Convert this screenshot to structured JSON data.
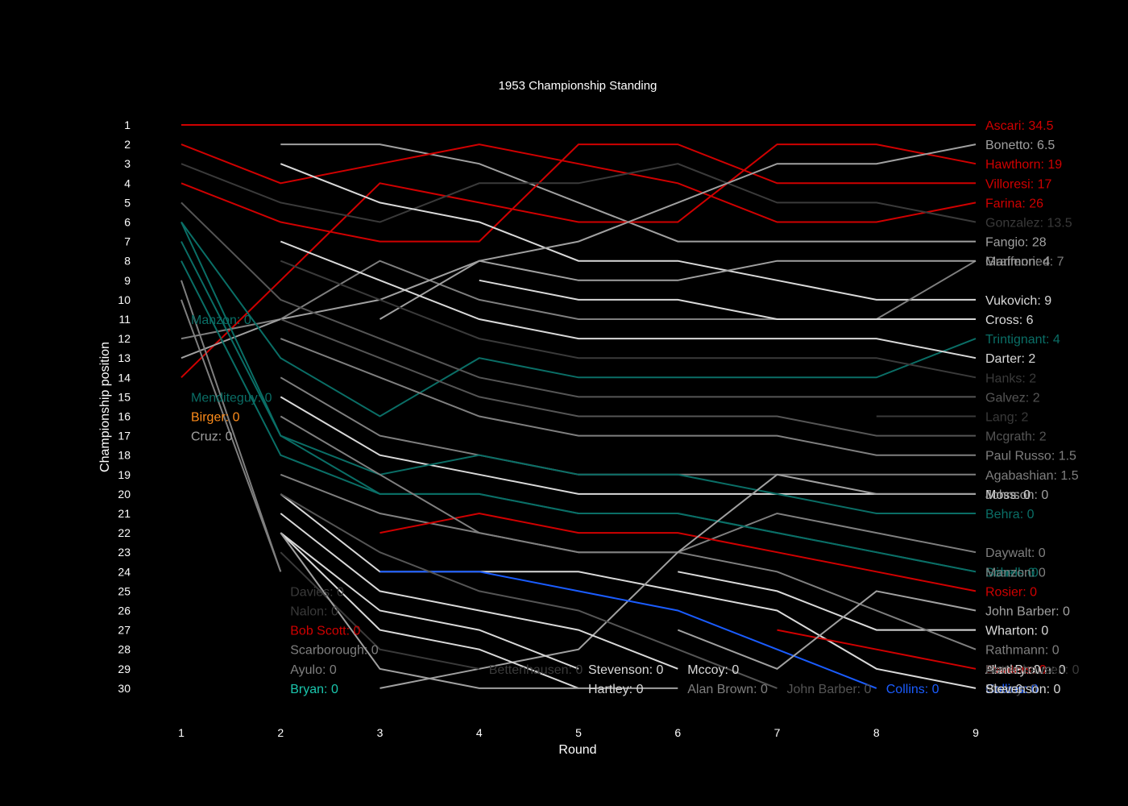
{
  "chart_data": {
    "type": "line",
    "title": "1953 Championship Standing",
    "xlabel": "Round",
    "ylabel": "Championship position",
    "x": [
      1,
      2,
      3,
      4,
      5,
      6,
      7,
      8,
      9
    ],
    "y_ticks": [
      1,
      2,
      3,
      4,
      5,
      6,
      7,
      8,
      9,
      10,
      11,
      12,
      13,
      14,
      15,
      16,
      17,
      18,
      19,
      20,
      21,
      22,
      23,
      24,
      25,
      26,
      27,
      28,
      29,
      30
    ],
    "yrange": [
      1,
      30
    ],
    "y_inverted": true,
    "grid": false,
    "background": "#000000",
    "colors": {
      "red": "#d00000",
      "light": "#d9d9d9",
      "gray": "#a0a0a0",
      "mid": "#7f7f7f",
      "dark": "#555555",
      "darker": "#3a3a3a",
      "teal": "#0a6e66",
      "bright_teal": "#1ac6ad",
      "orange": "#ff8c1a",
      "blue": "#1a5cff"
    },
    "series": [
      {
        "label": "Ascari: 34.5",
        "color": "red",
        "x": [
          1,
          2,
          3,
          4,
          5,
          6,
          7,
          8,
          9
        ],
        "y": [
          1,
          1,
          1,
          1,
          1,
          1,
          1,
          1,
          1
        ]
      },
      {
        "label": "Fangio: 28",
        "color": "gray",
        "x": [
          2,
          3,
          4,
          5,
          6,
          7,
          8,
          9
        ],
        "y": [
          2,
          2,
          3,
          5,
          7,
          7,
          7,
          7
        ]
      },
      {
        "label": "Farina: 26",
        "color": "red",
        "x": [
          1,
          2,
          3,
          4,
          5,
          6,
          7,
          8,
          9
        ],
        "y": [
          2,
          4,
          3,
          2,
          3,
          4,
          6,
          6,
          5
        ]
      },
      {
        "label": "Hawthorn: 19",
        "color": "red",
        "x": [
          1,
          2,
          3,
          4,
          5,
          6,
          7,
          8,
          9
        ],
        "y": [
          14,
          9,
          4,
          5,
          6,
          6,
          2,
          2,
          3
        ]
      },
      {
        "label": "Villoresi: 17",
        "color": "red",
        "x": [
          1,
          2,
          3,
          4,
          5,
          6,
          7,
          8,
          9
        ],
        "y": [
          4,
          6,
          7,
          7,
          2,
          2,
          4,
          4,
          4
        ]
      },
      {
        "label": "Gonzalez: 13.5",
        "color": "darker",
        "x": [
          1,
          2,
          3,
          4,
          5,
          6,
          7,
          8,
          9
        ],
        "y": [
          3,
          5,
          6,
          4,
          4,
          3,
          5,
          5,
          6
        ]
      },
      {
        "label": "Vukovich: 9",
        "color": "light",
        "x": [
          2,
          3,
          4,
          5,
          6,
          7,
          8,
          9
        ],
        "y": [
          3,
          5,
          6,
          8,
          8,
          9,
          10,
          10
        ]
      },
      {
        "label": "Graffenried: 7",
        "color": "mid",
        "x": [
          1,
          2,
          3,
          4,
          5,
          6,
          7,
          8,
          9
        ],
        "y": [
          12,
          11,
          8,
          10,
          11,
          11,
          11,
          11,
          8
        ]
      },
      {
        "label": "Bonetto: 6.5",
        "color": "gray",
        "x": [
          1,
          2,
          3,
          4,
          5,
          6,
          7,
          8,
          9
        ],
        "y": [
          13,
          11,
          10,
          8,
          7,
          5,
          3,
          3,
          2
        ]
      },
      {
        "label": "Cross: 6",
        "color": "light",
        "x": [
          4,
          5,
          6,
          7,
          8,
          9
        ],
        "y": [
          9,
          10,
          10,
          11,
          11,
          11
        ]
      },
      {
        "label": "Marimon: 4",
        "color": "gray",
        "x": [
          3,
          4,
          5,
          6,
          7,
          8,
          9
        ],
        "y": [
          11,
          8,
          9,
          9,
          8,
          8,
          8
        ]
      },
      {
        "label": "Trintignant: 4",
        "color": "teal",
        "x": [
          1,
          2,
          3,
          4,
          5,
          6,
          7,
          8,
          9
        ],
        "y": [
          6,
          13,
          16,
          13,
          14,
          14,
          14,
          14,
          12
        ]
      },
      {
        "label": "Darter: 2",
        "color": "light",
        "x": [
          2,
          3,
          4,
          5,
          6,
          7,
          8,
          9
        ],
        "y": [
          7,
          9,
          11,
          12,
          12,
          12,
          12,
          13
        ]
      },
      {
        "label": "Hanks: 2",
        "color": "darker",
        "x": [
          2,
          3,
          4,
          5,
          6,
          7,
          8,
          9
        ],
        "y": [
          8,
          10,
          12,
          13,
          13,
          13,
          13,
          14
        ]
      },
      {
        "label": "Galvez: 2",
        "color": "dark",
        "x": [
          1,
          2,
          3,
          4,
          5,
          6,
          7,
          8,
          9
        ],
        "y": [
          5,
          10,
          12,
          14,
          15,
          15,
          15,
          15,
          15
        ]
      },
      {
        "label": "Lang: 2",
        "color": "darker",
        "x": [
          8,
          9
        ],
        "y": [
          16,
          16
        ]
      },
      {
        "label": "Mcgrath: 2",
        "color": "dark",
        "x": [
          2,
          3,
          4,
          5,
          6,
          7,
          8,
          9
        ],
        "y": [
          11,
          13,
          15,
          16,
          16,
          16,
          17,
          17
        ]
      },
      {
        "label": "Paul Russo: 1.5",
        "color": "mid",
        "x": [
          2,
          3,
          4,
          5,
          6,
          7,
          8,
          9
        ],
        "y": [
          12,
          14,
          16,
          17,
          17,
          17,
          18,
          18
        ]
      },
      {
        "label": "Agabashian: 1.5",
        "color": "mid",
        "x": [
          2,
          3,
          4,
          5,
          6,
          7,
          8,
          9
        ],
        "y": [
          14,
          17,
          18,
          19,
          19,
          19,
          19,
          19
        ]
      },
      {
        "label": "Moss: 0",
        "color": "light",
        "x": [
          2,
          3,
          4,
          5,
          6,
          7,
          8,
          9
        ],
        "y": [
          15,
          18,
          19,
          20,
          20,
          20,
          20,
          20
        ]
      },
      {
        "label": "Behra: 0",
        "color": "teal",
        "x": [
          1,
          2,
          3,
          4,
          5,
          6,
          7,
          8,
          9
        ],
        "y": [
          7,
          17,
          19,
          18,
          19,
          19,
          20,
          21,
          21
        ]
      },
      {
        "label": "Mieres: 0",
        "color": "teal",
        "x": [
          1,
          2,
          3,
          4,
          5,
          6,
          7,
          8,
          9
        ],
        "y": [
          8,
          18,
          20,
          20,
          21,
          21,
          22,
          23,
          24
        ]
      },
      {
        "label": "Daywalt: 0",
        "color": "mid",
        "x": [
          2,
          3,
          4,
          5,
          6,
          7,
          8,
          9
        ],
        "y": [
          19,
          21,
          22,
          23,
          23,
          21,
          22,
          23
        ]
      },
      {
        "label": "Schell: 0",
        "color": "teal",
        "x": [
          1,
          2,
          3,
          4,
          5,
          6,
          7,
          8,
          9
        ],
        "y": [
          6,
          17,
          20,
          20,
          21,
          21,
          22,
          23,
          24
        ]
      },
      {
        "label": "Rosier: 0",
        "color": "red",
        "x": [
          3,
          4,
          5,
          6,
          7,
          8,
          9
        ],
        "y": [
          22,
          21,
          22,
          22,
          23,
          24,
          25
        ]
      },
      {
        "label": "Wharton: 0",
        "color": "light",
        "x": [
          6,
          7,
          8,
          9
        ],
        "y": [
          24,
          25,
          27,
          27
        ]
      },
      {
        "label": "Bira: 0",
        "color": "light",
        "x": [
          2,
          3,
          4,
          5,
          6,
          7,
          8,
          9
        ],
        "y": [
          20,
          24,
          24,
          24,
          25,
          26,
          29,
          30
        ]
      },
      {
        "label": "Rathmann: 0",
        "color": "mid",
        "x": [
          2,
          3,
          4,
          5,
          6,
          7,
          8,
          9
        ],
        "y": [
          16,
          19,
          22,
          23,
          23,
          24,
          26,
          28
        ]
      },
      {
        "label": "Swaters: 0",
        "color": "red",
        "x": [
          7,
          8,
          9
        ],
        "y": [
          27,
          28,
          29
        ]
      },
      {
        "label": "Johnson: 0",
        "color": "gray",
        "x": [
          3,
          4,
          5,
          6,
          7,
          8,
          9
        ],
        "y": [
          30,
          29,
          28,
          23,
          19,
          20,
          20
        ]
      },
      {
        "label": "Collins: 0",
        "color": "blue",
        "x": [
          3,
          4,
          5,
          6,
          7,
          8
        ],
        "y": [
          24,
          24,
          25,
          26,
          28,
          30
        ]
      },
      {
        "label": "John Barber: 0",
        "color": "gray",
        "x": [
          6,
          7,
          8,
          9
        ],
        "y": [
          27,
          29,
          25,
          26
        ]
      },
      {
        "label": "Alan Brown: 0",
        "color": "light",
        "x": [
          2,
          3,
          4,
          5,
          6
        ],
        "y": [
          21,
          25,
          26,
          27,
          29
        ]
      },
      {
        "label": "Mccoy: 0",
        "color": "dark",
        "x": [
          2,
          3,
          4,
          5,
          6,
          7
        ],
        "y": [
          20,
          23,
          25,
          26,
          28,
          30
        ]
      },
      {
        "label": "Hartley: 0",
        "color": "light",
        "x": [
          2,
          3,
          4,
          5
        ],
        "y": [
          22,
          26,
          27,
          29
        ]
      },
      {
        "label": "Stevenson: 0",
        "color": "light",
        "x": [
          2,
          3,
          4,
          5
        ],
        "y": [
          22,
          27,
          28,
          30
        ]
      },
      {
        "label": "Bettenhausen: 0",
        "color": "darker",
        "x": [
          2,
          3,
          4
        ],
        "y": [
          23,
          28,
          29
        ]
      },
      {
        "label": "Manzon: 0",
        "color": "mid",
        "x": [
          1,
          2
        ],
        "y": [
          9,
          24
        ]
      },
      {
        "label": "",
        "color": "gray",
        "x": [
          2,
          3,
          4,
          5,
          6
        ],
        "y": [
          22,
          29,
          30,
          30,
          30
        ]
      },
      {
        "label": "",
        "color": "mid",
        "x": [
          1,
          2
        ],
        "y": [
          10,
          24
        ]
      }
    ],
    "point_labels": [
      {
        "text": "Manzon: 0",
        "color": "teal",
        "x": 1,
        "y": 11
      },
      {
        "text": "Menditeguy: 0",
        "color": "teal",
        "x": 1,
        "y": 15
      },
      {
        "text": "Birger: 0",
        "color": "orange",
        "x": 1,
        "y": 16
      },
      {
        "text": "Cruz: 0",
        "color": "gray",
        "x": 1,
        "y": 17
      },
      {
        "text": "Davies: 0",
        "color": "darker",
        "x": 2,
        "y": 25
      },
      {
        "text": "Nalon: 0",
        "color": "darker",
        "x": 2,
        "y": 26
      },
      {
        "text": "Bob Scott: 0",
        "color": "red",
        "x": 2,
        "y": 27
      },
      {
        "text": "Scarborough: 0",
        "color": "mid",
        "x": 2,
        "y": 28
      },
      {
        "text": "Ayulo: 0",
        "color": "mid",
        "x": 2,
        "y": 29
      },
      {
        "text": "Bryan: 0",
        "color": "bright_teal",
        "x": 2,
        "y": 30
      },
      {
        "text": "Bettenhausen: 0",
        "color": "darker",
        "x": 4,
        "y": 29
      },
      {
        "text": "Stevenson: 0",
        "color": "light",
        "x": 5,
        "y": 29
      },
      {
        "text": "Hartley: 0",
        "color": "light",
        "x": 5,
        "y": 30
      },
      {
        "text": "Mccoy: 0",
        "color": "light",
        "x": 6,
        "y": 29
      },
      {
        "text": "Alan Brown: 0",
        "color": "mid",
        "x": 6,
        "y": 30
      },
      {
        "text": "John Barber: 0",
        "color": "dark",
        "x": 7,
        "y": 30
      },
      {
        "text": "Collins: 0",
        "color": "blue",
        "x": 8,
        "y": 30
      }
    ]
  }
}
